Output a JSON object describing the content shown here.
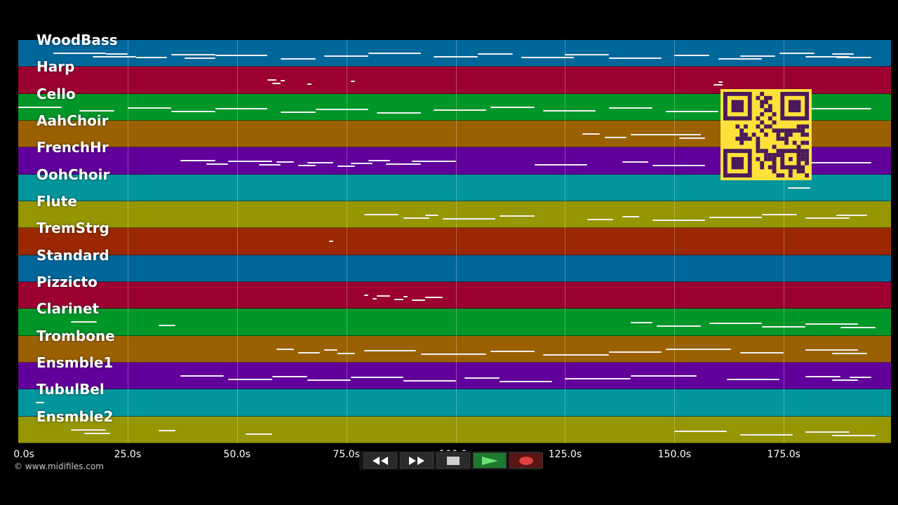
{
  "tracks": [
    {
      "label": "WoodBass",
      "color": "#00679b",
      "notes": [
        [
          8,
          12
        ],
        [
          17,
          10
        ],
        [
          20,
          5
        ],
        [
          27,
          7
        ],
        [
          35,
          10
        ],
        [
          38,
          7
        ],
        [
          45,
          12
        ],
        [
          60,
          8
        ],
        [
          70,
          10
        ],
        [
          80,
          12
        ],
        [
          95,
          10
        ],
        [
          105,
          8
        ],
        [
          115,
          12
        ],
        [
          125,
          10
        ],
        [
          135,
          12
        ],
        [
          150,
          8
        ],
        [
          160,
          10
        ],
        [
          165,
          8
        ],
        [
          174,
          8
        ],
        [
          180,
          10
        ],
        [
          186,
          5
        ],
        [
          187,
          8
        ]
      ]
    },
    {
      "label": "Harp",
      "color": "#9b0030",
      "notes": [
        [
          57,
          2
        ],
        [
          58,
          2
        ],
        [
          60,
          1
        ],
        [
          66,
          1
        ],
        [
          76,
          1
        ],
        [
          159,
          2
        ],
        [
          160,
          1
        ]
      ]
    },
    {
      "label": "Cello",
      "color": "#009628",
      "notes": [
        [
          0,
          10
        ],
        [
          14,
          8
        ],
        [
          25,
          10
        ],
        [
          35,
          10
        ],
        [
          45,
          12
        ],
        [
          60,
          8
        ],
        [
          68,
          12
        ],
        [
          82,
          10
        ],
        [
          95,
          12
        ],
        [
          108,
          10
        ],
        [
          120,
          12
        ],
        [
          135,
          10
        ],
        [
          148,
          12
        ],
        [
          180,
          15
        ]
      ]
    },
    {
      "label": "AahChoir",
      "color": "#9b6100",
      "notes": [
        [
          129,
          4
        ],
        [
          134,
          5
        ],
        [
          140,
          16
        ],
        [
          151,
          6
        ]
      ]
    },
    {
      "label": "FrenchHr",
      "color": "#61009b",
      "notes": [
        [
          37,
          8
        ],
        [
          43,
          5
        ],
        [
          48,
          10
        ],
        [
          55,
          5
        ],
        [
          59,
          4
        ],
        [
          64,
          4
        ],
        [
          66,
          6
        ],
        [
          73,
          4
        ],
        [
          76,
          5
        ],
        [
          80,
          5
        ],
        [
          84,
          8
        ],
        [
          90,
          10
        ],
        [
          118,
          12
        ],
        [
          138,
          6
        ],
        [
          145,
          12
        ],
        [
          181,
          14
        ]
      ]
    },
    {
      "label": "OohChoir",
      "color": "#00969b",
      "notes": [
        [
          176,
          5
        ]
      ]
    },
    {
      "label": "Flute",
      "color": "#969600",
      "notes": [
        [
          79,
          8
        ],
        [
          88,
          6
        ],
        [
          93,
          3
        ],
        [
          97,
          12
        ],
        [
          110,
          8
        ],
        [
          130,
          6
        ],
        [
          138,
          4
        ],
        [
          145,
          12
        ],
        [
          158,
          12
        ],
        [
          170,
          8
        ],
        [
          180,
          10
        ],
        [
          187,
          7
        ]
      ]
    },
    {
      "label": "TremStrg",
      "color": "#9b2800",
      "notes": [
        [
          71,
          1
        ]
      ]
    },
    {
      "label": "Standard",
      "color": "#00679b",
      "notes": []
    },
    {
      "label": "Pizzicto",
      "color": "#9b0030",
      "notes": [
        [
          79,
          1
        ],
        [
          81,
          1
        ],
        [
          82,
          3
        ],
        [
          86,
          2
        ],
        [
          88,
          1
        ],
        [
          90,
          3
        ],
        [
          93,
          4
        ]
      ]
    },
    {
      "label": "Clarinet",
      "color": "#009628",
      "notes": [
        [
          12,
          6
        ],
        [
          32,
          4
        ],
        [
          140,
          5
        ],
        [
          146,
          10
        ],
        [
          158,
          12
        ],
        [
          170,
          10
        ],
        [
          180,
          12
        ],
        [
          188,
          8
        ]
      ]
    },
    {
      "label": "Trombone",
      "color": "#9b6100",
      "notes": [
        [
          59,
          4
        ],
        [
          64,
          5
        ],
        [
          70,
          3
        ],
        [
          73,
          4
        ],
        [
          79,
          12
        ],
        [
          92,
          15
        ],
        [
          108,
          10
        ],
        [
          120,
          15
        ],
        [
          135,
          12
        ],
        [
          148,
          15
        ],
        [
          165,
          10
        ],
        [
          180,
          12
        ],
        [
          186,
          8
        ]
      ]
    },
    {
      "label": "Ensmble1",
      "color": "#61009b",
      "notes": [
        [
          37,
          10
        ],
        [
          48,
          10
        ],
        [
          58,
          8
        ],
        [
          66,
          10
        ],
        [
          76,
          12
        ],
        [
          88,
          12
        ],
        [
          102,
          8
        ],
        [
          110,
          12
        ],
        [
          125,
          15
        ],
        [
          140,
          15
        ],
        [
          162,
          12
        ],
        [
          180,
          8
        ],
        [
          186,
          6
        ],
        [
          190,
          5
        ]
      ]
    },
    {
      "label": "TubulBel",
      "color": "#00969b",
      "notes": [
        [
          4,
          2
        ]
      ]
    },
    {
      "label": "Ensmble2",
      "color": "#969600",
      "notes": [
        [
          12,
          8
        ],
        [
          15,
          6
        ],
        [
          32,
          4
        ],
        [
          52,
          6
        ],
        [
          150,
          12
        ],
        [
          165,
          12
        ],
        [
          180,
          10
        ],
        [
          186,
          10
        ]
      ]
    }
  ],
  "axis": {
    "ticks": [
      "0.0s",
      "25.0s",
      "50.0s",
      "75.0s",
      "100.0s",
      "125.0s",
      "150.0s",
      "175.0s"
    ],
    "tick_values": [
      0,
      25,
      50,
      75,
      100,
      125,
      150,
      175
    ],
    "max_seconds": 199.5
  },
  "copyright": "© www.midifiles.com",
  "controls": {
    "rewind_icon": "rewind-icon",
    "forward_icon": "fast-forward-icon",
    "stop_icon": "stop-icon",
    "play_icon": "play-icon",
    "record_icon": "record-icon",
    "play_color": "#1e7a2e",
    "record_color": "#e24040"
  },
  "qr": {
    "background": "#ffe13a",
    "module_color": "#4a1a5a"
  }
}
